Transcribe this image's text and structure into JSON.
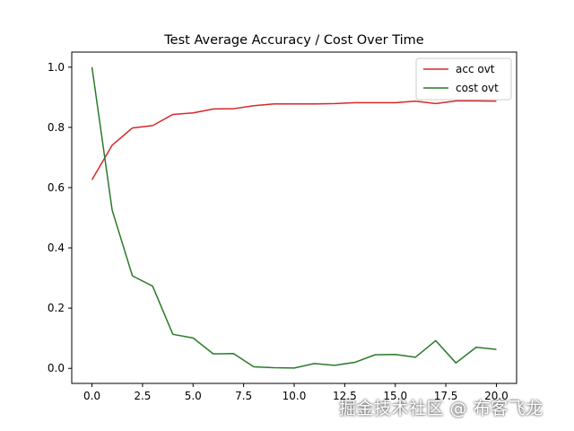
{
  "chart_data": {
    "type": "line",
    "title": "Test Average Accuracy / Cost Over Time",
    "xlabel": "",
    "ylabel": "",
    "xlim": [
      -1,
      21
    ],
    "ylim": [
      -0.05,
      1.05
    ],
    "x": [
      0,
      1,
      2,
      3,
      4,
      5,
      6,
      7,
      8,
      9,
      10,
      11,
      12,
      13,
      14,
      15,
      16,
      17,
      18,
      19,
      20
    ],
    "xticks": [
      0.0,
      2.5,
      5.0,
      7.5,
      10.0,
      12.5,
      15.0,
      17.5,
      20.0
    ],
    "xtick_labels": [
      "0.0",
      "2.5",
      "5.0",
      "7.5",
      "10.0",
      "12.5",
      "15.0",
      "17.5",
      "20.0"
    ],
    "yticks": [
      0.0,
      0.2,
      0.4,
      0.6,
      0.8,
      1.0
    ],
    "ytick_labels": [
      "0.0",
      "0.2",
      "0.4",
      "0.6",
      "0.8",
      "1.0"
    ],
    "grid": false,
    "legend_position": "top-right",
    "series": [
      {
        "name": "acc ovt",
        "color": "#d62728",
        "values": [
          0.626,
          0.741,
          0.798,
          0.806,
          0.843,
          0.848,
          0.861,
          0.862,
          0.872,
          0.878,
          0.878,
          0.878,
          0.879,
          0.882,
          0.882,
          0.882,
          0.887,
          0.879,
          0.888,
          0.888,
          0.887
        ]
      },
      {
        "name": "cost ovt",
        "color": "#2a7a2a",
        "values": [
          1.0,
          0.525,
          0.307,
          0.273,
          0.113,
          0.101,
          0.048,
          0.049,
          0.005,
          0.002,
          0.001,
          0.016,
          0.01,
          0.02,
          0.045,
          0.046,
          0.037,
          0.092,
          0.018,
          0.07,
          0.063
        ]
      }
    ]
  },
  "watermark": "掘金技术社区 @ 布客飞龙"
}
